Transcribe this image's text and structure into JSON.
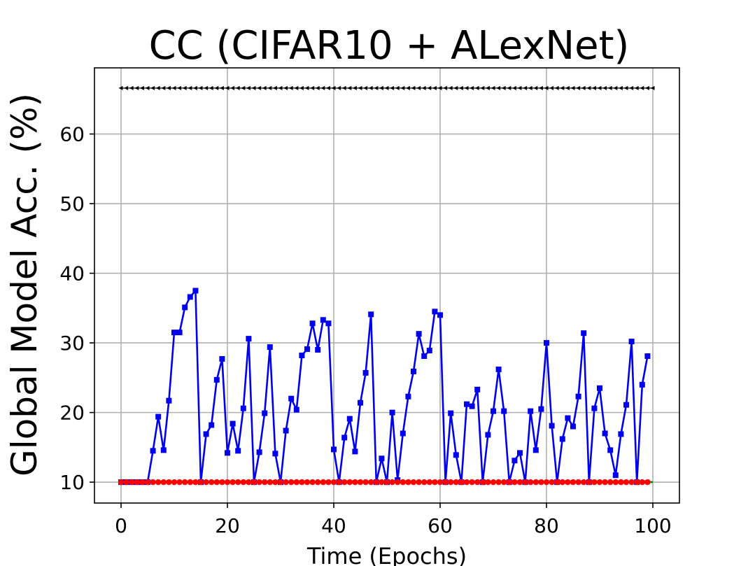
{
  "chart_data": {
    "type": "line",
    "title": "CC (CIFAR10 + ALexNet)",
    "xlabel": "Time (Epochs)",
    "ylabel": "Global Model Acc. (%)",
    "xlim": [
      -5,
      105
    ],
    "ylim": [
      7,
      69.5
    ],
    "xticks": [
      0,
      20,
      40,
      60,
      80,
      100
    ],
    "yticks": [
      10,
      20,
      30,
      40,
      50,
      60
    ],
    "grid": true,
    "series": [
      {
        "color": "#000000",
        "marker": "triangle-left",
        "x": [
          0,
          1,
          2,
          3,
          4,
          5,
          6,
          7,
          8,
          9,
          10,
          11,
          12,
          13,
          14,
          15,
          16,
          17,
          18,
          19,
          20,
          21,
          22,
          23,
          24,
          25,
          26,
          27,
          28,
          29,
          30,
          31,
          32,
          33,
          34,
          35,
          36,
          37,
          38,
          39,
          40,
          41,
          42,
          43,
          44,
          45,
          46,
          47,
          48,
          49,
          50,
          51,
          52,
          53,
          54,
          55,
          56,
          57,
          58,
          59,
          60,
          61,
          62,
          63,
          64,
          65,
          66,
          67,
          68,
          69,
          70,
          71,
          72,
          73,
          74,
          75,
          76,
          77,
          78,
          79,
          80,
          81,
          82,
          83,
          84,
          85,
          86,
          87,
          88,
          89,
          90,
          91,
          92,
          93,
          94,
          95,
          96,
          97,
          98,
          99,
          100
        ],
        "values": [
          66.6,
          66.6,
          66.6,
          66.6,
          66.6,
          66.6,
          66.6,
          66.6,
          66.6,
          66.6,
          66.6,
          66.6,
          66.6,
          66.6,
          66.6,
          66.6,
          66.6,
          66.6,
          66.6,
          66.6,
          66.6,
          66.6,
          66.6,
          66.6,
          66.6,
          66.6,
          66.6,
          66.6,
          66.6,
          66.6,
          66.6,
          66.6,
          66.6,
          66.6,
          66.6,
          66.6,
          66.6,
          66.6,
          66.6,
          66.6,
          66.6,
          66.6,
          66.6,
          66.6,
          66.6,
          66.6,
          66.6,
          66.6,
          66.6,
          66.6,
          66.6,
          66.6,
          66.6,
          66.6,
          66.6,
          66.6,
          66.6,
          66.6,
          66.6,
          66.6,
          66.6,
          66.6,
          66.6,
          66.6,
          66.6,
          66.6,
          66.6,
          66.6,
          66.6,
          66.6,
          66.6,
          66.6,
          66.6,
          66.6,
          66.6,
          66.6,
          66.6,
          66.6,
          66.6,
          66.6,
          66.6,
          66.6,
          66.6,
          66.6,
          66.6,
          66.6,
          66.6,
          66.6,
          66.6,
          66.6,
          66.6,
          66.6,
          66.6,
          66.6,
          66.6,
          66.6,
          66.6,
          66.6,
          66.6,
          66.6,
          66.6
        ]
      },
      {
        "color": "#0000ee",
        "marker": "square",
        "x": [
          0,
          1,
          2,
          3,
          4,
          5,
          6,
          7,
          8,
          9,
          10,
          11,
          12,
          13,
          14,
          15,
          16,
          17,
          18,
          19,
          20,
          21,
          22,
          23,
          24,
          25,
          26,
          27,
          28,
          29,
          30,
          31,
          32,
          33,
          34,
          35,
          36,
          37,
          38,
          39,
          40,
          41,
          42,
          43,
          44,
          45,
          46,
          47,
          48,
          49,
          50,
          51,
          52,
          53,
          54,
          55,
          56,
          57,
          58,
          59,
          60,
          61,
          62,
          63,
          64,
          65,
          66,
          67,
          68,
          69,
          70,
          71,
          72,
          73,
          74,
          75,
          76,
          77,
          78,
          79,
          80,
          81,
          82,
          83,
          84,
          85,
          86,
          87,
          88,
          89,
          90,
          91,
          92,
          93,
          94,
          95,
          96,
          97,
          98,
          99
        ],
        "values": [
          10,
          10,
          10,
          10,
          10,
          10,
          14.5,
          19.4,
          14.6,
          21.7,
          31.5,
          31.5,
          35.1,
          36.6,
          37.5,
          10,
          16.9,
          18.2,
          24.7,
          27.7,
          14.2,
          18.4,
          14.5,
          20.6,
          30.6,
          10,
          14.3,
          19.9,
          29.4,
          14.1,
          10,
          17.4,
          22,
          20.4,
          28.2,
          29.1,
          32.8,
          29,
          33.3,
          32.8,
          14.7,
          10,
          16.4,
          19.1,
          14.4,
          21.4,
          25.7,
          34.1,
          10,
          13.4,
          10,
          20,
          10.3,
          17,
          22.3,
          25.9,
          31.3,
          28.1,
          28.9,
          34.5,
          34,
          10,
          19.9,
          13.9,
          10,
          21.2,
          20.9,
          23.3,
          10,
          16.8,
          20.2,
          26.2,
          20.2,
          10,
          13.1,
          14.2,
          10,
          20.2,
          14.6,
          20.5,
          30,
          18.1,
          10,
          16.2,
          19.2,
          18,
          22.3,
          31.4,
          10,
          20.6,
          23.5,
          17,
          14.6,
          11,
          16.9,
          21.1,
          30.2,
          10,
          24,
          28.1
        ]
      },
      {
        "color": "#008000",
        "marker": "none",
        "x": [
          0,
          100
        ],
        "values": [
          10,
          10
        ]
      },
      {
        "color": "#ff0000",
        "marker": "circle",
        "x": [
          0,
          1,
          2,
          3,
          4,
          5,
          6,
          7,
          8,
          9,
          10,
          11,
          12,
          13,
          14,
          15,
          16,
          17,
          18,
          19,
          20,
          21,
          22,
          23,
          24,
          25,
          26,
          27,
          28,
          29,
          30,
          31,
          32,
          33,
          34,
          35,
          36,
          37,
          38,
          39,
          40,
          41,
          42,
          43,
          44,
          45,
          46,
          47,
          48,
          49,
          50,
          51,
          52,
          53,
          54,
          55,
          56,
          57,
          58,
          59,
          60,
          61,
          62,
          63,
          64,
          65,
          66,
          67,
          68,
          69,
          70,
          71,
          72,
          73,
          74,
          75,
          76,
          77,
          78,
          79,
          80,
          81,
          82,
          83,
          84,
          85,
          86,
          87,
          88,
          89,
          90,
          91,
          92,
          93,
          94,
          95,
          96,
          97,
          98,
          99
        ],
        "values": [
          10,
          10,
          10,
          10,
          10,
          10,
          10,
          10,
          10,
          10,
          10,
          10,
          10,
          10,
          10,
          10,
          10,
          10,
          10,
          10,
          10,
          10,
          10,
          10,
          10,
          10,
          10,
          10,
          10,
          10,
          10,
          10,
          10,
          10,
          10,
          10,
          10,
          10,
          10,
          10,
          10,
          10,
          10,
          10,
          10,
          10,
          10,
          10,
          10,
          10,
          10,
          10,
          10,
          10,
          10,
          10,
          10,
          10,
          10,
          10,
          10,
          10,
          10,
          10,
          10,
          10,
          10,
          10,
          10,
          10,
          10,
          10,
          10,
          10,
          10,
          10,
          10,
          10,
          10,
          10,
          10,
          10,
          10,
          10,
          10,
          10,
          10,
          10,
          10,
          10,
          10,
          10,
          10,
          10,
          10,
          10,
          10,
          10,
          10,
          10
        ]
      }
    ]
  }
}
